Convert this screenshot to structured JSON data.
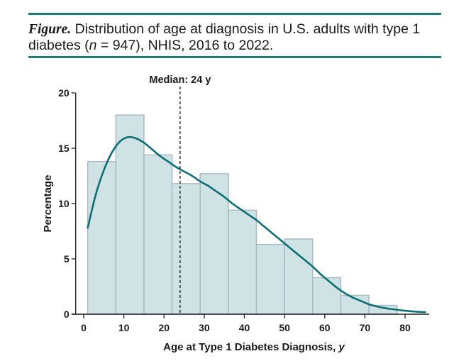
{
  "caption": {
    "label": "Figure.",
    "text_before_n": "Distribution of age at diagnosis in U.S. adults with type 1 diabetes (",
    "n_symbol": "n",
    "text_after_n": " = 947), NHIS, 2016 to 2022."
  },
  "colors": {
    "rule": "#1f7a7a",
    "bar_fill": "#cfe3e4",
    "bar_stroke": "#a9b9c6",
    "curve": "#0c6f74",
    "axis": "#222222"
  },
  "chart_data": {
    "type": "bar",
    "subtype": "histogram-with-density",
    "xlabel": "Age at Type 1 Diabetes Diagnosis, ",
    "xlabel_var": "y",
    "ylabel": "Percentage",
    "xlim": [
      -3,
      86
    ],
    "ylim": [
      0,
      20
    ],
    "x_ticks": [
      0,
      10,
      20,
      30,
      40,
      50,
      60,
      70,
      80
    ],
    "y_ticks": [
      0,
      5,
      10,
      15,
      20
    ],
    "bins": [
      {
        "start": 1,
        "end": 8,
        "value": 13.8
      },
      {
        "start": 8,
        "end": 15,
        "value": 18.0
      },
      {
        "start": 15,
        "end": 22,
        "value": 14.4
      },
      {
        "start": 22,
        "end": 29,
        "value": 11.8
      },
      {
        "start": 29,
        "end": 36,
        "value": 12.7
      },
      {
        "start": 36,
        "end": 43,
        "value": 9.4
      },
      {
        "start": 43,
        "end": 50,
        "value": 6.3
      },
      {
        "start": 50,
        "end": 57,
        "value": 6.8
      },
      {
        "start": 57,
        "end": 64,
        "value": 3.3
      },
      {
        "start": 64,
        "end": 71,
        "value": 1.7
      },
      {
        "start": 71,
        "end": 78,
        "value": 0.8
      }
    ],
    "density_curve": {
      "x": [
        1,
        3,
        5,
        7,
        9,
        11,
        13,
        15,
        17,
        19,
        21,
        23,
        25,
        27,
        29,
        31,
        33,
        35,
        37,
        39,
        41,
        43,
        45,
        47,
        49,
        51,
        53,
        55,
        57,
        59,
        61,
        63,
        65,
        67,
        69,
        71,
        73,
        75,
        77,
        79,
        81,
        83,
        85
      ],
      "y": [
        7.8,
        10.8,
        13.0,
        14.6,
        15.6,
        16.0,
        15.9,
        15.5,
        14.9,
        14.3,
        13.8,
        13.3,
        12.9,
        12.5,
        12.0,
        11.6,
        11.1,
        10.6,
        10.0,
        9.5,
        9.0,
        8.5,
        7.9,
        7.3,
        6.7,
        6.1,
        5.5,
        4.9,
        4.3,
        3.6,
        3.0,
        2.4,
        1.9,
        1.5,
        1.2,
        0.9,
        0.7,
        0.55,
        0.45,
        0.35,
        0.28,
        0.22,
        0.18
      ]
    },
    "median": {
      "x": 24,
      "label": "Median: 24 y"
    }
  }
}
